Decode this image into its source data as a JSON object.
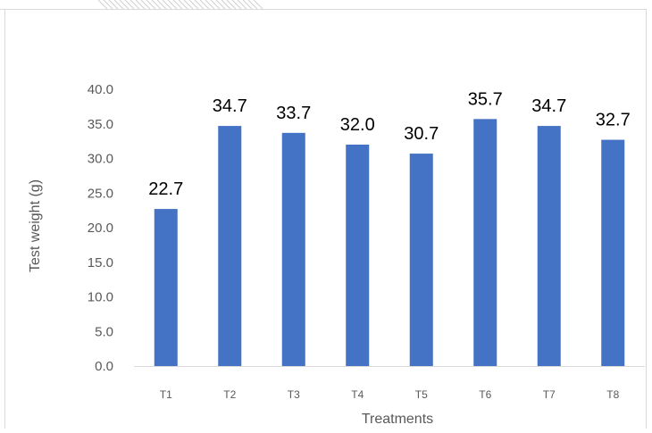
{
  "chart_data": {
    "type": "bar",
    "categories": [
      "T1",
      "T2",
      "T3",
      "T4",
      "T5",
      "T6",
      "T7",
      "T8"
    ],
    "values": [
      22.7,
      34.7,
      33.7,
      32.0,
      30.7,
      35.7,
      34.7,
      32.7
    ],
    "value_labels": [
      "22.7",
      "34.7",
      "33.7",
      "32.0",
      "30.7",
      "35.7",
      "34.7",
      "32.7"
    ],
    "ylim": [
      0,
      40
    ],
    "yticks": [
      "0.0",
      "5.0",
      "10.0",
      "15.0",
      "20.0",
      "25.0",
      "30.0",
      "35.0",
      "40.0"
    ],
    "xlabel": "Treatments",
    "ylabel": "Test weight (g)",
    "grid": false,
    "legend": "none",
    "bar_color": "#4472C4"
  }
}
